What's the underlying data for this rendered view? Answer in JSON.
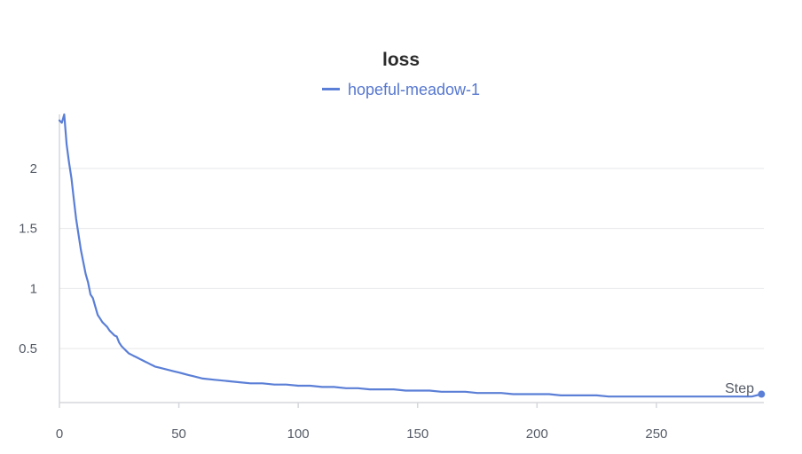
{
  "chart_data": {
    "type": "line",
    "title": "loss",
    "xlabel": "Step",
    "ylabel": "",
    "xlim": [
      0,
      295
    ],
    "ylim": [
      0.05,
      2.45
    ],
    "x_ticks": [
      0,
      50,
      100,
      150,
      200,
      250
    ],
    "y_ticks": [
      0.5,
      1,
      1.5,
      2
    ],
    "grid": true,
    "legend_position": "top-center",
    "series": [
      {
        "name": "hopeful-meadow-1",
        "color": "#5b7fd6",
        "x": [
          0,
          1,
          2,
          3,
          4,
          5,
          6,
          7,
          8,
          9,
          10,
          11,
          12,
          13,
          14,
          15,
          16,
          17,
          18,
          19,
          20,
          21,
          22,
          23,
          24,
          25,
          26,
          27,
          28,
          29,
          30,
          31,
          32,
          33,
          34,
          35,
          36,
          37,
          38,
          39,
          40,
          42,
          44,
          46,
          48,
          50,
          52,
          54,
          56,
          58,
          60,
          65,
          70,
          75,
          80,
          85,
          90,
          95,
          100,
          105,
          110,
          115,
          120,
          125,
          130,
          135,
          140,
          145,
          150,
          155,
          160,
          165,
          170,
          175,
          180,
          185,
          190,
          195,
          200,
          205,
          210,
          215,
          220,
          225,
          230,
          235,
          240,
          245,
          250,
          255,
          260,
          265,
          270,
          275,
          280,
          285,
          290,
          294
        ],
        "values": [
          2.4,
          2.38,
          2.45,
          2.2,
          2.05,
          1.92,
          1.75,
          1.58,
          1.45,
          1.32,
          1.22,
          1.12,
          1.05,
          0.95,
          0.92,
          0.85,
          0.78,
          0.75,
          0.72,
          0.7,
          0.68,
          0.65,
          0.63,
          0.61,
          0.6,
          0.55,
          0.52,
          0.5,
          0.48,
          0.46,
          0.45,
          0.44,
          0.43,
          0.42,
          0.41,
          0.4,
          0.39,
          0.38,
          0.37,
          0.36,
          0.35,
          0.34,
          0.33,
          0.32,
          0.31,
          0.3,
          0.29,
          0.28,
          0.27,
          0.26,
          0.25,
          0.24,
          0.23,
          0.22,
          0.21,
          0.21,
          0.2,
          0.2,
          0.19,
          0.19,
          0.18,
          0.18,
          0.17,
          0.17,
          0.16,
          0.16,
          0.16,
          0.15,
          0.15,
          0.15,
          0.14,
          0.14,
          0.14,
          0.13,
          0.13,
          0.13,
          0.12,
          0.12,
          0.12,
          0.12,
          0.11,
          0.11,
          0.11,
          0.11,
          0.1,
          0.1,
          0.1,
          0.1,
          0.1,
          0.1,
          0.1,
          0.1,
          0.1,
          0.1,
          0.1,
          0.1,
          0.1,
          0.12
        ]
      }
    ]
  }
}
